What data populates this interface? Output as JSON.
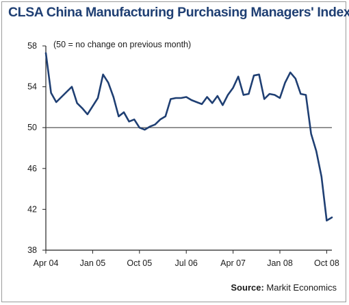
{
  "chart_data": {
    "type": "line",
    "title": "CLSA China Manufacturing Purchasing Managers' Index",
    "subtitle": "(50 = no change on previous month)",
    "source_label": "Source:",
    "source_value": "Markit Economics",
    "xlabel": "",
    "ylabel": "",
    "ylim": [
      38,
      58
    ],
    "yticks": [
      58,
      54,
      50,
      46,
      42,
      38
    ],
    "xticks": [
      {
        "index": 0,
        "label": "Apr 04"
      },
      {
        "index": 9,
        "label": "Jan 05"
      },
      {
        "index": 18,
        "label": "Oct 05"
      },
      {
        "index": 27,
        "label": "Jul 06"
      },
      {
        "index": 36,
        "label": "Apr 07"
      },
      {
        "index": 45,
        "label": "Jan 08"
      },
      {
        "index": 54,
        "label": "Oct 08"
      }
    ],
    "reference_line": 50,
    "grid": false,
    "series": [
      {
        "color": "#1f3f73",
        "values": [
          57.3,
          53.4,
          52.5,
          53.0,
          53.5,
          54.0,
          52.4,
          51.9,
          51.3,
          52.1,
          52.9,
          55.2,
          54.4,
          53.0,
          51.1,
          51.5,
          50.6,
          50.8,
          50.0,
          49.8,
          50.1,
          50.3,
          50.8,
          51.1,
          52.8,
          52.9,
          52.9,
          53.0,
          52.7,
          52.5,
          52.3,
          53.0,
          52.4,
          53.1,
          52.2,
          53.2,
          53.9,
          55.0,
          53.2,
          53.3,
          55.1,
          55.2,
          52.8,
          53.3,
          53.2,
          52.9,
          54.4,
          55.4,
          54.8,
          53.3,
          53.2,
          49.4,
          47.7,
          45.2,
          40.9,
          41.2
        ]
      }
    ]
  }
}
